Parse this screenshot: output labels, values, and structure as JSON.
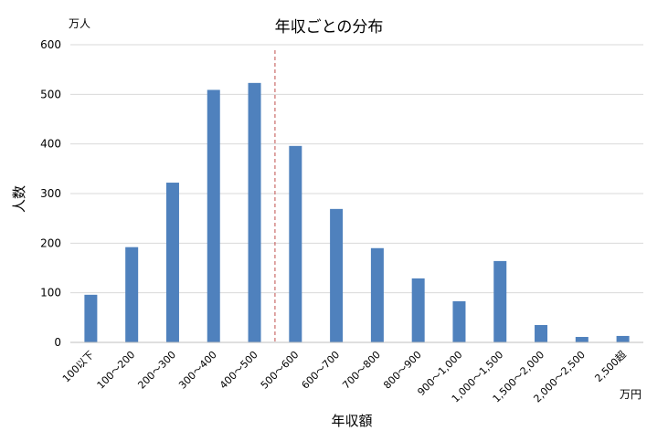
{
  "chart_data": {
    "type": "bar",
    "title": "年収ごとの分布",
    "xlabel": "年収額",
    "ylabel": "人数",
    "y_unit": "万人",
    "x_unit": "万円",
    "ylim": [
      0,
      600
    ],
    "yticks": [
      0,
      100,
      200,
      300,
      400,
      500,
      600
    ],
    "grid": true,
    "categories": [
      "100以下",
      "100～200",
      "200～300",
      "300～400",
      "400～500",
      "500～600",
      "600～700",
      "700～800",
      "800～900",
      "900～1,000",
      "1,000～1,500",
      "1,500～2,000",
      "2,000～2,500",
      "2,500超"
    ],
    "values": [
      96,
      192,
      322,
      509,
      523,
      396,
      269,
      190,
      129,
      83,
      164,
      35,
      11,
      13
    ],
    "bar_color": "#4f81bd",
    "reference_line": {
      "after_category_index": 4,
      "color": "#c0504d",
      "style": "dashed"
    }
  }
}
